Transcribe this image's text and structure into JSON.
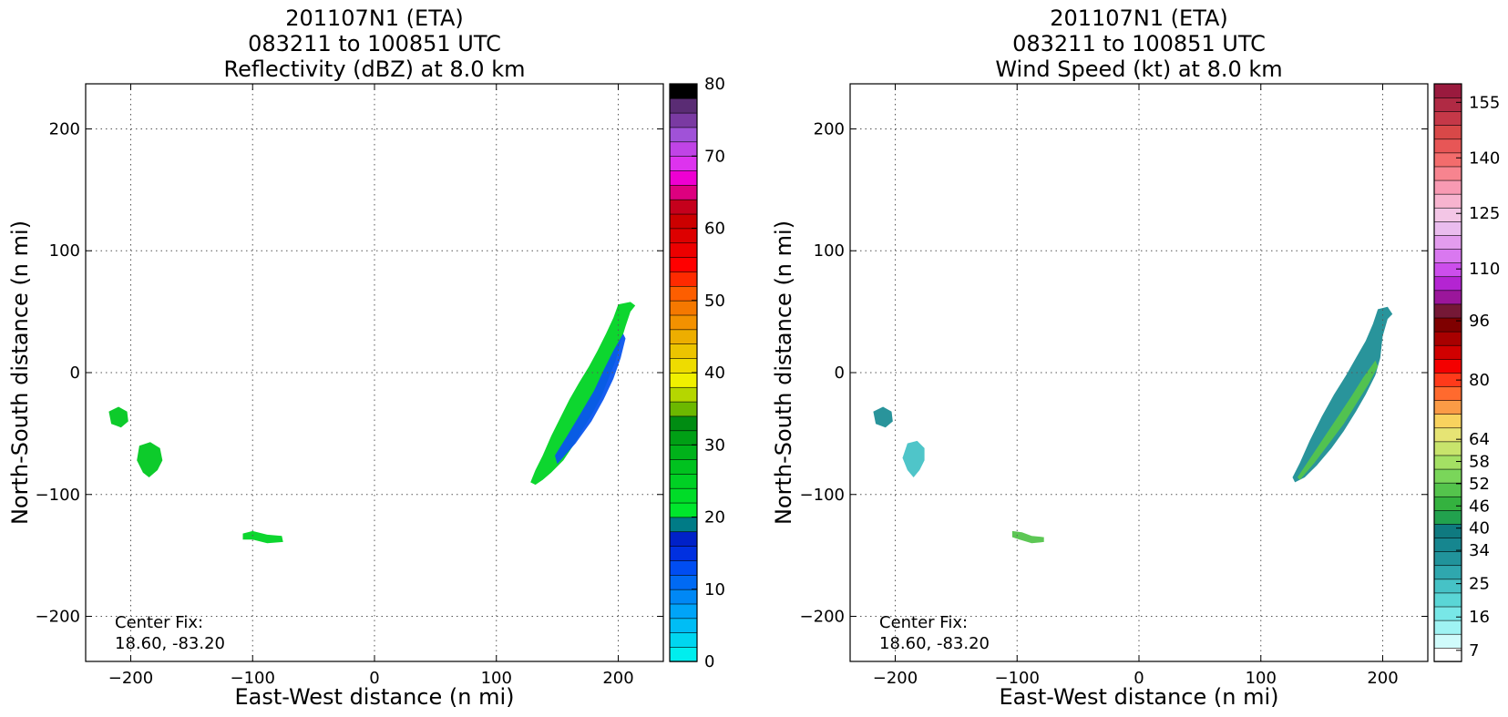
{
  "chart_data": [
    {
      "type": "heatmap",
      "title_lines": [
        "201107N1 (ETA)",
        "083211 to 100851 UTC",
        "Reflectivity (dBZ) at 8.0 km"
      ],
      "xlabel": "East-West distance (n mi)",
      "ylabel": "North-South distance (n mi)",
      "xlim": [
        -237,
        237
      ],
      "ylim": [
        -237,
        237
      ],
      "x_ticks": [
        -200,
        -100,
        0,
        100,
        200
      ],
      "y_ticks": [
        -200,
        -100,
        0,
        100,
        200
      ],
      "x_tick_labels": [
        "−200",
        "−100",
        "0",
        "100",
        "200"
      ],
      "y_tick_labels": [
        "−200",
        "−100",
        "0",
        "100",
        "200"
      ],
      "grid": true,
      "annotation": [
        "Center Fix:",
        "18.60, -83.20"
      ],
      "colorbar": {
        "min": 0,
        "max": 80,
        "ticks": [
          0,
          10,
          20,
          30,
          40,
          50,
          60,
          70,
          80
        ],
        "tick_labels": [
          "0",
          "10",
          "20",
          "30",
          "40",
          "50",
          "60",
          "70",
          "80"
        ],
        "colors": [
          "#00eeee",
          "#00d6f0",
          "#00bdf5",
          "#00a4f8",
          "#0088f5",
          "#006af3",
          "#004df2",
          "#0030e0",
          "#0021c8",
          "#007b86",
          "#00e62c",
          "#00dc28",
          "#00d024",
          "#00c21f",
          "#00b21a",
          "#009f15",
          "#008c12",
          "#6cb800",
          "#b5d600",
          "#f0f000",
          "#eedc00",
          "#ecc400",
          "#edae00",
          "#f39100",
          "#f57800",
          "#fd5e00",
          "#ff2a00",
          "#ff0000",
          "#ec0000",
          "#dd0000",
          "#cc0000",
          "#c5001c",
          "#dd007f",
          "#ee00d2",
          "#dd33ee",
          "#c044e6",
          "#a052d8",
          "#7a3aa2",
          "#5a2c74",
          "#000000"
        ]
      },
      "regions": [
        {
          "name": "main band",
          "points": [
            [
              132,
              -92
            ],
            [
              138,
              -88
            ],
            [
              145,
              -82
            ],
            [
              155,
              -72
            ],
            [
              163,
              -60
            ],
            [
              170,
              -48
            ],
            [
              178,
              -35
            ],
            [
              186,
              -20
            ],
            [
              192,
              -5
            ],
            [
              198,
              10
            ],
            [
              202,
              25
            ],
            [
              206,
              38
            ],
            [
              210,
              50
            ],
            [
              214,
              55
            ],
            [
              210,
              58
            ],
            [
              200,
              56
            ],
            [
              196,
              45
            ],
            [
              190,
              32
            ],
            [
              183,
              18
            ],
            [
              176,
              5
            ],
            [
              168,
              -8
            ],
            [
              160,
              -22
            ],
            [
              152,
              -38
            ],
            [
              145,
              -52
            ],
            [
              138,
              -68
            ],
            [
              132,
              -80
            ],
            [
              128,
              -90
            ]
          ],
          "color": "#00d424"
        },
        {
          "name": "main band inner",
          "points": [
            [
              150,
              -75
            ],
            [
              165,
              -58
            ],
            [
              178,
              -40
            ],
            [
              188,
              -22
            ],
            [
              196,
              -5
            ],
            [
              202,
              12
            ],
            [
              206,
              28
            ],
            [
              204,
              32
            ],
            [
              196,
              18
            ],
            [
              188,
              2
            ],
            [
              180,
              -15
            ],
            [
              170,
              -32
            ],
            [
              158,
              -52
            ],
            [
              148,
              -68
            ]
          ],
          "color": "#0a55ee"
        },
        {
          "name": "west cell",
          "points": [
            [
              -218,
              -32
            ],
            [
              -210,
              -28
            ],
            [
              -203,
              -32
            ],
            [
              -202,
              -40
            ],
            [
              -208,
              -45
            ],
            [
              -216,
              -42
            ]
          ],
          "color": "#00c820"
        },
        {
          "name": "west cell 2",
          "points": [
            [
              -193,
              -60
            ],
            [
              -184,
              -57
            ],
            [
              -176,
              -62
            ],
            [
              -174,
              -72
            ],
            [
              -178,
              -80
            ],
            [
              -185,
              -86
            ],
            [
              -190,
              -82
            ],
            [
              -195,
              -72
            ]
          ],
          "color": "#00c820"
        },
        {
          "name": "south cell",
          "points": [
            [
              -108,
              -132
            ],
            [
              -100,
              -130
            ],
            [
              -88,
              -133
            ],
            [
              -76,
              -134
            ],
            [
              -75,
              -139
            ],
            [
              -88,
              -140
            ],
            [
              -100,
              -137
            ],
            [
              -108,
              -137
            ]
          ],
          "color": "#00d424"
        }
      ]
    },
    {
      "type": "heatmap",
      "title_lines": [
        "201107N1 (ETA)",
        "083211 to 100851 UTC",
        "Wind Speed (kt) at 8.0 km"
      ],
      "xlabel": "East-West distance (n mi)",
      "ylabel": "North-South distance (n mi)",
      "xlim": [
        -237,
        237
      ],
      "ylim": [
        -237,
        237
      ],
      "x_ticks": [
        -200,
        -100,
        0,
        100,
        200
      ],
      "y_ticks": [
        -200,
        -100,
        0,
        100,
        200
      ],
      "x_tick_labels": [
        "−200",
        "−100",
        "0",
        "100",
        "200"
      ],
      "y_tick_labels": [
        "−200",
        "−100",
        "0",
        "100",
        "200"
      ],
      "grid": true,
      "annotation": [
        "Center Fix:",
        "18.60, -83.20"
      ],
      "colorbar": {
        "min": 4,
        "max": 160,
        "ticks": [
          7,
          16,
          25,
          34,
          40,
          46,
          52,
          58,
          64,
          80,
          96,
          110,
          125,
          140,
          155
        ],
        "tick_labels": [
          "7",
          "16",
          "25",
          "34",
          "40",
          "46",
          "52",
          "58",
          "64",
          "80",
          "96",
          "110",
          "125",
          "140",
          "155"
        ],
        "colors": [
          "#ffffff",
          "#d0fbfb",
          "#9ff3f3",
          "#78e7e7",
          "#5ad6d6",
          "#46c2c6",
          "#2fa7ae",
          "#21939b",
          "#16868f",
          "#0f7a80",
          "#22a24e",
          "#34b23f",
          "#54c44c",
          "#7ad65a",
          "#a4e064",
          "#c8e46c",
          "#e6e474",
          "#f8d25e",
          "#fb9b46",
          "#ff6a2e",
          "#ff3a1a",
          "#f40000",
          "#d00000",
          "#a80000",
          "#7f0000",
          "#751836",
          "#9b169b",
          "#b424d2",
          "#cc4eec",
          "#d978f0",
          "#e39cee",
          "#eabcee",
          "#f3c6e6",
          "#f7b4cf",
          "#f89ab3",
          "#f7848f",
          "#f36c6c",
          "#e75656",
          "#d84848",
          "#c53848",
          "#b02a44",
          "#9a1a3e"
        ]
      },
      "regions": [
        {
          "name": "main band",
          "points": [
            [
              128,
              -90
            ],
            [
              136,
              -86
            ],
            [
              146,
              -76
            ],
            [
              158,
              -62
            ],
            [
              168,
              -48
            ],
            [
              178,
              -32
            ],
            [
              186,
              -18
            ],
            [
              194,
              -2
            ],
            [
              198,
              12
            ],
            [
              200,
              30
            ],
            [
              204,
              44
            ],
            [
              208,
              48
            ],
            [
              204,
              54
            ],
            [
              196,
              52
            ],
            [
              192,
              40
            ],
            [
              186,
              26
            ],
            [
              178,
              12
            ],
            [
              170,
              -2
            ],
            [
              160,
              -18
            ],
            [
              150,
              -36
            ],
            [
              140,
              -56
            ],
            [
              132,
              -74
            ],
            [
              126,
              -86
            ]
          ],
          "color": "#1e8e96"
        },
        {
          "name": "main band green",
          "points": [
            [
              132,
              -88
            ],
            [
              144,
              -74
            ],
            [
              156,
              -58
            ],
            [
              168,
              -42
            ],
            [
              178,
              -26
            ],
            [
              188,
              -10
            ],
            [
              196,
              5
            ],
            [
              194,
              10
            ],
            [
              184,
              -4
            ],
            [
              174,
              -20
            ],
            [
              162,
              -38
            ],
            [
              150,
              -56
            ],
            [
              138,
              -74
            ],
            [
              130,
              -86
            ]
          ],
          "color": "#54c44c"
        },
        {
          "name": "west cell",
          "points": [
            [
              -218,
              -32
            ],
            [
              -210,
              -28
            ],
            [
              -203,
              -32
            ],
            [
              -202,
              -40
            ],
            [
              -208,
              -45
            ],
            [
              -216,
              -42
            ]
          ],
          "color": "#1e8e96"
        },
        {
          "name": "west cell 2",
          "points": [
            [
              -190,
              -58
            ],
            [
              -182,
              -56
            ],
            [
              -176,
              -62
            ],
            [
              -176,
              -72
            ],
            [
              -180,
              -80
            ],
            [
              -185,
              -86
            ],
            [
              -190,
              -80
            ],
            [
              -194,
              -70
            ]
          ],
          "color": "#46c2c6"
        },
        {
          "name": "south cell",
          "points": [
            [
              -104,
              -130
            ],
            [
              -96,
              -131
            ],
            [
              -88,
              -134
            ],
            [
              -78,
              -135
            ],
            [
              -78,
              -139
            ],
            [
              -88,
              -140
            ],
            [
              -98,
              -137
            ],
            [
              -104,
              -135
            ]
          ],
          "color": "#54c44c"
        }
      ]
    }
  ]
}
